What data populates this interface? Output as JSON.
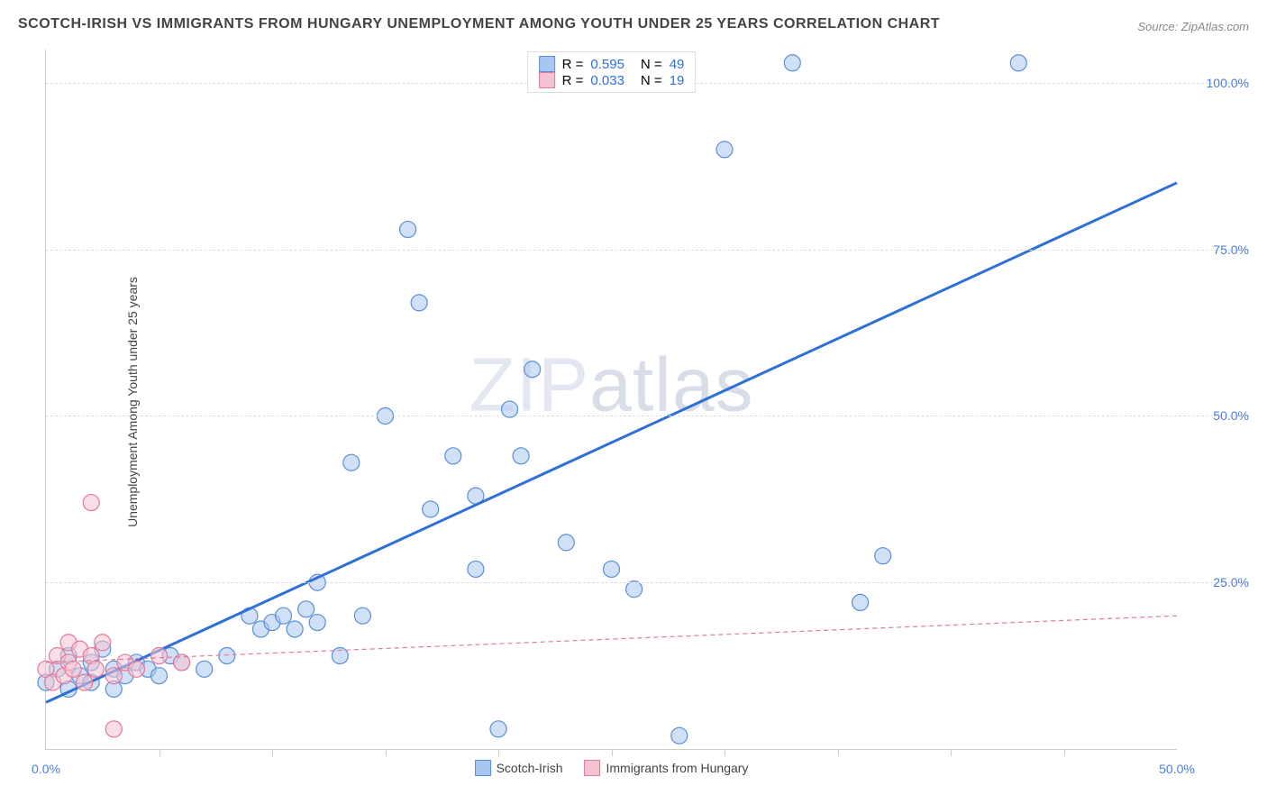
{
  "title": "SCOTCH-IRISH VS IMMIGRANTS FROM HUNGARY UNEMPLOYMENT AMONG YOUTH UNDER 25 YEARS CORRELATION CHART",
  "source": "Source: ZipAtlas.com",
  "y_axis_label": "Unemployment Among Youth under 25 years",
  "chart": {
    "type": "scatter",
    "xlim": [
      0,
      50
    ],
    "ylim": [
      0,
      105
    ],
    "x_ticks": [
      0,
      50
    ],
    "x_tick_labels": [
      "0.0%",
      "50.0%"
    ],
    "y_ticks": [
      25,
      50,
      75,
      100
    ],
    "y_tick_labels": [
      "25.0%",
      "50.0%",
      "75.0%",
      "100.0%"
    ],
    "x_minor_ticks": [
      5,
      10,
      15,
      20,
      25,
      30,
      35,
      40,
      45
    ],
    "background_color": "#ffffff",
    "grid_color": "#dddddd",
    "marker_radius": 9,
    "marker_stroke_width": 1.2,
    "series": [
      {
        "name": "Scotch-Irish",
        "color_fill": "#a9c6f0",
        "color_stroke": "#5a8fd8",
        "fill_opacity": 0.55,
        "R": "0.595",
        "N": "49",
        "trend": {
          "x1": 0,
          "y1": 7,
          "x2": 50,
          "y2": 85,
          "width": 3,
          "dash": "none",
          "color": "#2f6fd8"
        },
        "points": [
          [
            0,
            10
          ],
          [
            0.5,
            12
          ],
          [
            1,
            9
          ],
          [
            1,
            14
          ],
          [
            1.5,
            11
          ],
          [
            2,
            13
          ],
          [
            2,
            10
          ],
          [
            2.5,
            15
          ],
          [
            3,
            12
          ],
          [
            3,
            9
          ],
          [
            3.5,
            11
          ],
          [
            4,
            13
          ],
          [
            4.5,
            12
          ],
          [
            5,
            11
          ],
          [
            5.5,
            14
          ],
          [
            6,
            13
          ],
          [
            7,
            12
          ],
          [
            8,
            14
          ],
          [
            9,
            20
          ],
          [
            9.5,
            18
          ],
          [
            10,
            19
          ],
          [
            10.5,
            20
          ],
          [
            11,
            18
          ],
          [
            11.5,
            21
          ],
          [
            12,
            19
          ],
          [
            12,
            25
          ],
          [
            13,
            14
          ],
          [
            13.5,
            43
          ],
          [
            14,
            20
          ],
          [
            15,
            50
          ],
          [
            16,
            78
          ],
          [
            16.5,
            67
          ],
          [
            17,
            36
          ],
          [
            18,
            44
          ],
          [
            19,
            27
          ],
          [
            19,
            38
          ],
          [
            20,
            3
          ],
          [
            20.5,
            51
          ],
          [
            21,
            44
          ],
          [
            21.5,
            57
          ],
          [
            23,
            31
          ],
          [
            25,
            27
          ],
          [
            26,
            24
          ],
          [
            30,
            90
          ],
          [
            28,
            2
          ],
          [
            33,
            103
          ],
          [
            36,
            22
          ],
          [
            37,
            29
          ],
          [
            43,
            103
          ]
        ]
      },
      {
        "name": "Immigrants from Hungary",
        "color_fill": "#f5c2cf",
        "color_stroke": "#e07a9a",
        "fill_opacity": 0.55,
        "R": "0.033",
        "N": "19",
        "trend": {
          "x1": 0,
          "y1": 13,
          "x2": 50,
          "y2": 20,
          "width": 1.2,
          "dash": "5,4",
          "color": "#e07a9a"
        },
        "points": [
          [
            0,
            12
          ],
          [
            0.3,
            10
          ],
          [
            0.5,
            14
          ],
          [
            0.8,
            11
          ],
          [
            1,
            13
          ],
          [
            1,
            16
          ],
          [
            1.2,
            12
          ],
          [
            1.5,
            15
          ],
          [
            1.7,
            10
          ],
          [
            2,
            14
          ],
          [
            2,
            37
          ],
          [
            2.2,
            12
          ],
          [
            2.5,
            16
          ],
          [
            3,
            11
          ],
          [
            3,
            3
          ],
          [
            3.5,
            13
          ],
          [
            4,
            12
          ],
          [
            5,
            14
          ],
          [
            6,
            13
          ]
        ]
      }
    ],
    "legend_bottom": [
      {
        "swatch_fill": "#a9c6f0",
        "swatch_stroke": "#5a8fd8",
        "label": "Scotch-Irish"
      },
      {
        "swatch_fill": "#f5c2cf",
        "swatch_stroke": "#e07a9a",
        "label": "Immigrants from Hungary"
      }
    ]
  },
  "watermark": {
    "zip": "ZIP",
    "atlas": "atlas"
  }
}
